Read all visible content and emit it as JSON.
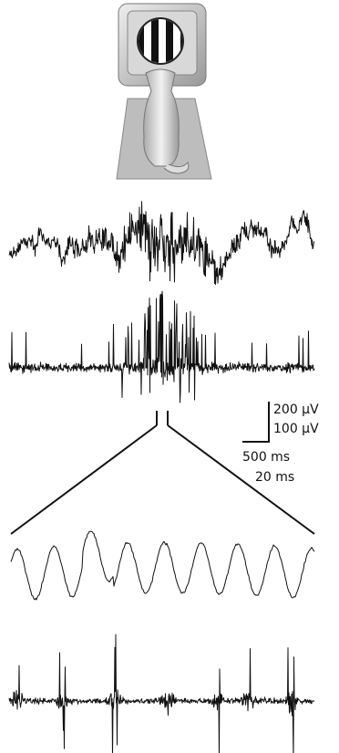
{
  "scale_bar": {
    "voltage_labels": [
      "200 μV",
      "100 μV"
    ],
    "time_labels": [
      "500 ms",
      "20 ms"
    ]
  }
}
